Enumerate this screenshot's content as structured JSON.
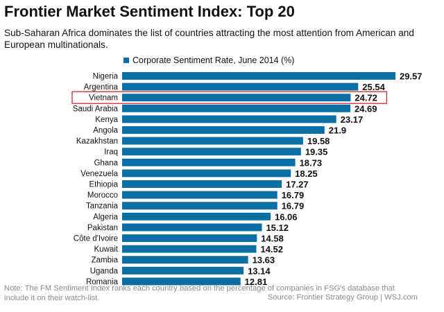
{
  "title": "Frontier Market Sentiment Index: Top 20",
  "subtitle": "Sub-Saharan Africa dominates the list of countries attracting the most attention from American and European multinationals.",
  "note": "Note: The FM Sentiment Index ranks each country based on the percentage of companies in FSG's database that include it on their watch-list.",
  "source": "Source: Frontier Strategy Group  |  WSJ.com",
  "colors": {
    "bar": "#0b6fa4",
    "highlight": "#d02a2a",
    "text": "#111111",
    "note": "#8a8a8a"
  },
  "chart_data": {
    "type": "bar",
    "orientation": "horizontal",
    "title": "Frontier Market Sentiment Index: Top 20",
    "legend": "Corporate Sentiment Rate, June 2014 (%)",
    "categories": [
      "Nigeria",
      "Argentina",
      "Vietnam",
      "Saudi Arabia",
      "Kenya",
      "Angola",
      "Kazakhstan",
      "Iraq",
      "Ghana",
      "Venezuela",
      "Ethiopia",
      "Morocco",
      "Tanzania",
      "Algeria",
      "Pakistan",
      "Côte d'Ivoire",
      "Kuwait",
      "Zambia",
      "Uganda",
      "Romania"
    ],
    "values": [
      29.57,
      25.54,
      24.72,
      24.69,
      23.17,
      21.9,
      19.58,
      19.35,
      18.73,
      18.25,
      17.27,
      16.79,
      16.79,
      16.06,
      15.12,
      14.58,
      14.52,
      13.63,
      13.14,
      12.81
    ],
    "value_labels": [
      "29.57",
      "25.54",
      "24.72",
      "24.69",
      "23.17",
      "21.9",
      "19.58",
      "19.35",
      "18.73",
      "18.25",
      "17.27",
      "16.79",
      "16.79",
      "16.06",
      "15.12",
      "14.58",
      "14.52",
      "13.63",
      "13.14",
      "12.81"
    ],
    "highlighted": "Vietnam",
    "xlim": [
      0,
      29.57
    ]
  }
}
